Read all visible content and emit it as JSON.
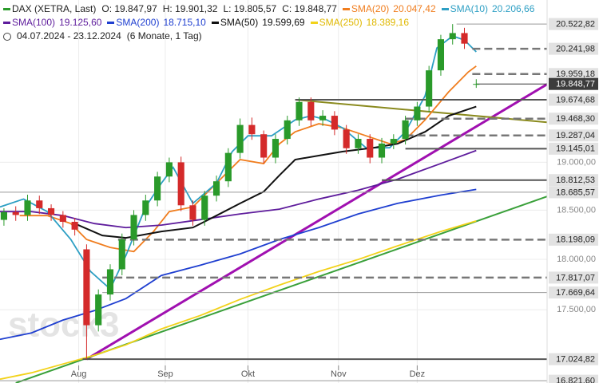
{
  "chart_data": {
    "type": "candlestick",
    "header": {
      "title": "DAX (XETRA, Last)",
      "ohlc": [
        "O: 19.847,97",
        "H: 19.901,32",
        "L: 19.805,57",
        "C: 19.848,77"
      ],
      "range": "04.07.2024 - 23.12.2024",
      "period": "(6 Monate, 1 Tag)"
    },
    "watermark": "stock3",
    "log_scale": true,
    "grid": true,
    "xlim": [
      0,
      139
    ],
    "ylim": [
      16800,
      20800
    ],
    "xticks": [
      {
        "value": 20,
        "label": "Aug"
      },
      {
        "value": 42,
        "label": "Sep"
      },
      {
        "value": 63,
        "label": "Okt"
      },
      {
        "value": 86,
        "label": "Nov"
      },
      {
        "value": 106,
        "label": "Dez"
      }
    ],
    "yticks": [
      {
        "value": 17500,
        "label": "17.500,00"
      },
      {
        "value": 18000,
        "label": "18.000,00"
      },
      {
        "value": 18500,
        "label": "18.500,00"
      },
      {
        "value": 19000,
        "label": "19.000,00"
      }
    ],
    "up_color": "#2a9a2a",
    "down_color": "#d42a2a",
    "candles": {
      "x": [
        1,
        4,
        7,
        10,
        13,
        16,
        19,
        22,
        25,
        28,
        31,
        34,
        37,
        40,
        43,
        46,
        49,
        52,
        55,
        58,
        61,
        64,
        67,
        70,
        73,
        76,
        79,
        82,
        85,
        88,
        91,
        94,
        97,
        100,
        103,
        106,
        109,
        112,
        115,
        118,
        121
      ],
      "open": [
        18400,
        18480,
        18450,
        18600,
        18520,
        18450,
        18380,
        18100,
        17350,
        17650,
        17900,
        18200,
        18450,
        18600,
        18850,
        19000,
        18550,
        18400,
        18650,
        18800,
        19100,
        19400,
        19300,
        19050,
        19250,
        19450,
        19650,
        19450,
        19500,
        19350,
        19150,
        19250,
        19050,
        19200,
        19250,
        19450,
        19600,
        20000,
        20350,
        20420,
        19847.97
      ],
      "high": [
        18520,
        18540,
        18660,
        18650,
        18560,
        18490,
        18420,
        18150,
        17700,
        17950,
        18260,
        18500,
        18660,
        18900,
        19050,
        19060,
        18600,
        18700,
        18860,
        19150,
        19470,
        19480,
        19340,
        19300,
        19500,
        19700,
        19700,
        19560,
        19550,
        19400,
        19300,
        19300,
        19260,
        19300,
        19500,
        19650,
        20050,
        20400,
        20522.82,
        20480,
        19901.32
      ],
      "low": [
        18340,
        18390,
        18390,
        18460,
        18390,
        18320,
        18240,
        17024.82,
        17290,
        17590,
        17840,
        18140,
        18390,
        18540,
        18790,
        18490,
        18340,
        18340,
        18590,
        18740,
        19040,
        19240,
        18990,
        18990,
        19190,
        19390,
        19390,
        19390,
        19290,
        19090,
        19090,
        18990,
        18990,
        19140,
        19190,
        19390,
        19540,
        19940,
        20290,
        20240,
        19805.57
      ],
      "close": [
        18480,
        18450,
        18600,
        18520,
        18450,
        18380,
        18300,
        17350,
        17650,
        17900,
        18200,
        18450,
        18600,
        18850,
        19000,
        18550,
        18400,
        18650,
        18800,
        19100,
        19400,
        19300,
        19050,
        19250,
        19450,
        19650,
        19450,
        19500,
        19350,
        19150,
        19250,
        19050,
        19200,
        19250,
        19450,
        19600,
        20000,
        20350,
        20420,
        20300,
        19848.77
      ]
    },
    "series": [
      {
        "name": "SMA(20)",
        "legend_value": "20.047,42",
        "color": "#f07d1e",
        "x": [
          5,
          12,
          18,
          22,
          28,
          34,
          39,
          43,
          49,
          55,
          61,
          67,
          71,
          75,
          81,
          87,
          93,
          99,
          103,
          108,
          114,
          119,
          121
        ],
        "values": [
          18444,
          18444,
          18362,
          18200,
          18119,
          18078,
          18281,
          18485,
          18533,
          18780,
          19029,
          18987,
          19198,
          19326,
          19413,
          19369,
          19283,
          19198,
          19240,
          19455,
          19761,
          19982,
          20047.42
        ]
      },
      {
        "name": "SMA(10)",
        "legend_value": "20.206,66",
        "color": "#2d9fc4",
        "x": [
          0,
          6,
          12,
          18,
          23,
          28,
          32,
          37,
          41,
          44,
          49,
          55,
          59,
          63,
          69,
          75,
          79,
          83,
          87,
          93,
          99,
          103,
          108,
          111,
          115,
          118,
          121
        ],
        "values": [
          18533,
          18615,
          18485,
          18200,
          17878,
          17704,
          18038,
          18533,
          18780,
          18946,
          18570,
          18780,
          19114,
          19283,
          19283,
          19455,
          19499,
          19455,
          19369,
          19155,
          19155,
          19326,
          19717,
          20251,
          20386,
          20341,
          20206.66
        ]
      },
      {
        "name": "SMA(100)",
        "legend_value": "19.125,60",
        "color": "#5e1c9c",
        "x": [
          0,
          8,
          16,
          24,
          32,
          41,
          51,
          61,
          71,
          81,
          91,
          101,
          112,
          121
        ],
        "values": [
          18485,
          18485,
          18444,
          18362,
          18321,
          18346,
          18403,
          18461,
          18510,
          18615,
          18707,
          18822,
          18987,
          19125.6
        ]
      },
      {
        "name": "SMA(200)",
        "legend_value": "18.715,10",
        "color": "#1f3fd0",
        "x": [
          0,
          8,
          16,
          24,
          32,
          41,
          51,
          61,
          71,
          81,
          91,
          101,
          112,
          121
        ],
        "values": [
          17214,
          17276,
          17400,
          17492,
          17610,
          17838,
          17942,
          18054,
          18200,
          18321,
          18461,
          18570,
          18656,
          18715.1
        ]
      },
      {
        "name": "SMA(50)",
        "legend_value": "19.599,69",
        "color": "#111111",
        "x": [
          19,
          26,
          32,
          41,
          49,
          55,
          61,
          67,
          71,
          75,
          81,
          87,
          95,
          101,
          108,
          114,
          121
        ],
        "values": [
          18362,
          18240,
          18216,
          18281,
          18321,
          18444,
          18570,
          18692,
          18863,
          19029,
          19071,
          19114,
          19155,
          19198,
          19326,
          19499,
          19599.69
        ]
      },
      {
        "name": "SMA(250)",
        "legend_value": "18.389,16",
        "color": "#f2d21a",
        "x": [
          0,
          8,
          16,
          24,
          32,
          41,
          51,
          61,
          71,
          81,
          91,
          101,
          112,
          121
        ],
        "values": [
          16836,
          16896,
          16979,
          17062,
          17161,
          17314,
          17446,
          17602,
          17743,
          17878,
          17998,
          18135,
          18281,
          18389.16
        ]
      }
    ],
    "trendlines": [
      {
        "color": "#a010b0",
        "x": [
          22,
          151
        ],
        "values": [
          17024.82,
          20160
        ]
      },
      {
        "color": "#8a8a1e",
        "x": [
          75,
          152
        ],
        "values": [
          19674.68,
          19380
        ]
      },
      {
        "color": "#3aa03a",
        "x": [
          4,
          140
        ],
        "values": [
          16800,
          18656
        ]
      }
    ],
    "levels": [
      {
        "value": 20522.82,
        "label": "20.522,82",
        "style": "thin",
        "from": 116
      },
      {
        "value": 20241.98,
        "label": "20.241,98",
        "style": "dashed",
        "from": 120
      },
      {
        "value": 19959.18,
        "label": "19.959,18",
        "style": "dashed",
        "from": 120
      },
      {
        "value": 19848.77,
        "label": "19.848,77",
        "style": "current",
        "from": 121
      },
      {
        "value": 19674.68,
        "label": "19.674,68",
        "style": "solid",
        "from": 75
      },
      {
        "value": 19468.3,
        "label": "19.468,30",
        "style": "dashed",
        "from": 103
      },
      {
        "value": 19287.04,
        "label": "19.287,04",
        "style": "dashed",
        "from": 103
      },
      {
        "value": 19145.01,
        "label": "19.145,01",
        "style": "solid",
        "from": 103
      },
      {
        "value": 18812.53,
        "label": "18.812,53",
        "style": "solid",
        "from": 97
      },
      {
        "value": 18685.57,
        "label": "18.685,57",
        "style": "thin",
        "from": 0
      },
      {
        "value": 18198.09,
        "label": "18.198,09",
        "style": "dashed",
        "from": 30
      },
      {
        "value": 17817.07,
        "label": "17.817,07",
        "style": "dashed",
        "from": 26
      },
      {
        "value": 17669.64,
        "label": "17.669,64",
        "style": "thin",
        "from": 26
      },
      {
        "value": 17024.82,
        "label": "17.024,82",
        "style": "solid",
        "from": 21
      },
      {
        "value": 16821.6,
        "label": "16.821,60",
        "style": "thin",
        "from": 0
      }
    ]
  }
}
